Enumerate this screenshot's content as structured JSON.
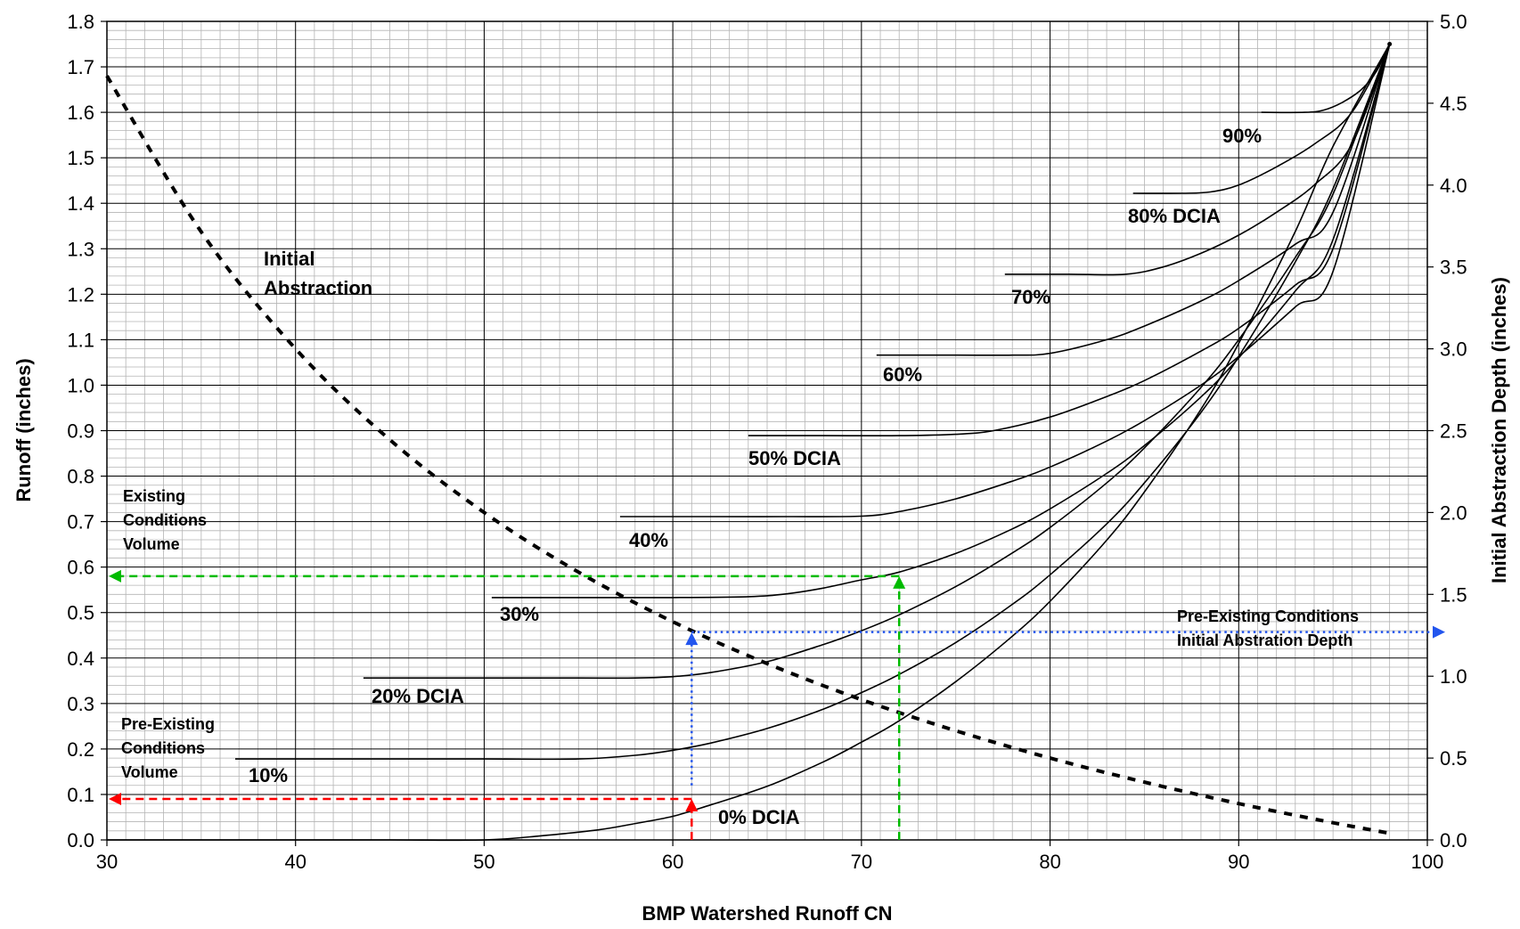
{
  "chart_data": {
    "type": "line",
    "xlabel": "BMP Watershed Runoff CN",
    "ylabel": "Runoff (inches)",
    "y2label": "Initial Abstraction Depth (inches)",
    "xlim": [
      30,
      100
    ],
    "ylim": [
      0,
      1.8
    ],
    "y2lim": [
      0,
      5
    ],
    "x_ticks": [
      "30",
      "40",
      "50",
      "60",
      "70",
      "80",
      "90",
      "100"
    ],
    "y_ticks": [
      "0.0",
      "0.1",
      "0.2",
      "0.3",
      "0.4",
      "0.5",
      "0.6",
      "0.7",
      "0.8",
      "0.9",
      "1.0",
      "1.1",
      "1.2",
      "1.3",
      "1.4",
      "1.5",
      "1.6",
      "1.7",
      "1.8"
    ],
    "y2_ticks": [
      "0.0",
      "0.5",
      "1.0",
      "1.5",
      "2.0",
      "2.5",
      "3.0",
      "3.5",
      "4.0",
      "4.5",
      "5.0"
    ],
    "grid": "on",
    "series": [
      {
        "label": "0% DCIA",
        "axis": "left",
        "style": "solid",
        "x": [
          30,
          40,
          45,
          50,
          53,
          56,
          58,
          60,
          62,
          65,
          68,
          70,
          72,
          75,
          78,
          80,
          83,
          85,
          88,
          90,
          93,
          95,
          98
        ],
        "y": [
          0,
          0,
          0,
          0,
          0.009,
          0.022,
          0.036,
          0.052,
          0.077,
          0.118,
          0.172,
          0.215,
          0.262,
          0.348,
          0.448,
          0.525,
          0.659,
          0.765,
          0.947,
          1.092,
          1.338,
          1.525,
          1.75
        ]
      },
      {
        "label": "10%",
        "axis": "left",
        "style": "solid",
        "x": [
          36.8,
          45,
          50,
          55,
          58,
          60,
          62,
          65,
          68,
          70,
          72,
          75,
          78,
          80,
          83,
          85,
          88,
          90,
          93,
          95,
          98
        ],
        "y": [
          0.178,
          0.178,
          0.178,
          0.178,
          0.186,
          0.197,
          0.213,
          0.245,
          0.288,
          0.324,
          0.364,
          0.434,
          0.518,
          0.583,
          0.695,
          0.785,
          0.94,
          1.063,
          1.271,
          1.432,
          1.75
        ]
      },
      {
        "label": "20% DCIA",
        "axis": "left",
        "style": "solid",
        "x": [
          43.6,
          50,
          55,
          58,
          60,
          62,
          65,
          68,
          70,
          72,
          75,
          78,
          80,
          83,
          85,
          88,
          90,
          93,
          95,
          98
        ],
        "y": [
          0.356,
          0.356,
          0.356,
          0.356,
          0.359,
          0.368,
          0.392,
          0.43,
          0.46,
          0.495,
          0.557,
          0.631,
          0.687,
          0.785,
          0.862,
          0.995,
          1.1,
          1.281,
          1.42,
          1.75
        ]
      },
      {
        "label": "30%",
        "axis": "left",
        "style": "solid",
        "x": [
          50.4,
          55,
          60,
          64,
          66,
          68,
          70,
          72,
          75,
          78,
          80,
          83,
          85,
          88,
          90,
          93,
          95,
          98
        ],
        "y": [
          0.533,
          0.533,
          0.533,
          0.535,
          0.541,
          0.554,
          0.572,
          0.589,
          0.63,
          0.684,
          0.728,
          0.806,
          0.867,
          0.974,
          1.06,
          1.207,
          1.32,
          1.75
        ]
      },
      {
        "label": "40%",
        "axis": "left",
        "style": "solid",
        "x": [
          57.2,
          62,
          66,
          70,
          72,
          75,
          78,
          80,
          83,
          85,
          88,
          90,
          93,
          95,
          98
        ],
        "y": [
          0.711,
          0.711,
          0.711,
          0.712,
          0.722,
          0.75,
          0.789,
          0.82,
          0.877,
          0.922,
          1.0,
          1.063,
          1.172,
          1.25,
          1.75
        ]
      },
      {
        "label": "50% DCIA",
        "axis": "left",
        "style": "solid",
        "x": [
          64,
          68,
          72,
          75,
          77,
          80,
          83,
          85,
          88,
          90,
          93,
          95,
          98
        ],
        "y": [
          0.889,
          0.889,
          0.889,
          0.892,
          0.9,
          0.93,
          0.975,
          1.01,
          1.075,
          1.125,
          1.22,
          1.3,
          1.75
        ]
      },
      {
        "label": "60%",
        "axis": "left",
        "style": "solid",
        "x": [
          70.8,
          75,
          78,
          80,
          83,
          85,
          88,
          90,
          93,
          95,
          98
        ],
        "y": [
          1.066,
          1.066,
          1.066,
          1.07,
          1.1,
          1.13,
          1.185,
          1.23,
          1.31,
          1.38,
          1.75
        ]
      },
      {
        "label": "70%",
        "axis": "left",
        "style": "solid",
        "x": [
          77.6,
          81,
          84,
          86,
          88,
          90,
          92,
          94,
          96,
          98
        ],
        "y": [
          1.244,
          1.244,
          1.244,
          1.26,
          1.29,
          1.33,
          1.38,
          1.44,
          1.53,
          1.75
        ]
      },
      {
        "label": "80% DCIA",
        "axis": "left",
        "style": "solid",
        "x": [
          84.4,
          87,
          88.5,
          90,
          92,
          94,
          96,
          98
        ],
        "y": [
          1.422,
          1.422,
          1.425,
          1.44,
          1.48,
          1.53,
          1.6,
          1.75
        ]
      },
      {
        "label": "90%",
        "axis": "left",
        "style": "solid",
        "x": [
          91.2,
          93.5,
          94.5,
          95.5,
          96.5,
          97.3,
          98
        ],
        "y": [
          1.6,
          1.6,
          1.605,
          1.622,
          1.65,
          1.69,
          1.75
        ]
      },
      {
        "label": "Initial Abstraction",
        "axis": "right",
        "style": "dashed",
        "x": [
          30,
          35,
          40,
          45,
          50,
          55,
          60,
          65,
          70,
          75,
          80,
          85,
          90,
          95,
          98
        ],
        "y": [
          4.667,
          3.714,
          3.0,
          2.444,
          2.0,
          1.636,
          1.333,
          1.077,
          0.857,
          0.667,
          0.5,
          0.353,
          0.222,
          0.105,
          0.041
        ]
      }
    ],
    "guides": [
      {
        "name": "existing-conditions-volume",
        "color": "#00bb00",
        "style": "dashed",
        "cn": 72,
        "runoff": 0.58
      },
      {
        "name": "pre-existing-conditions-volume",
        "color": "#ff0000",
        "style": "dashed",
        "cn": 61,
        "runoff": 0.09
      },
      {
        "name": "pre-existing-abstraction-depth",
        "color": "#2255ee",
        "style": "dotted",
        "cn": 61,
        "abstraction": 1.27
      }
    ],
    "annotations": {
      "initial_abstraction": [
        "Initial",
        "Abstraction"
      ],
      "existing_conditions_volume": [
        "Existing",
        "Conditions",
        "Volume"
      ],
      "pre_existing_conditions_volume": [
        "Pre-Existing",
        "Conditions",
        "Volume"
      ],
      "pre_existing_abstraction_depth": [
        "Pre-Existing Conditions",
        "Initial Abstration Depth"
      ]
    }
  }
}
